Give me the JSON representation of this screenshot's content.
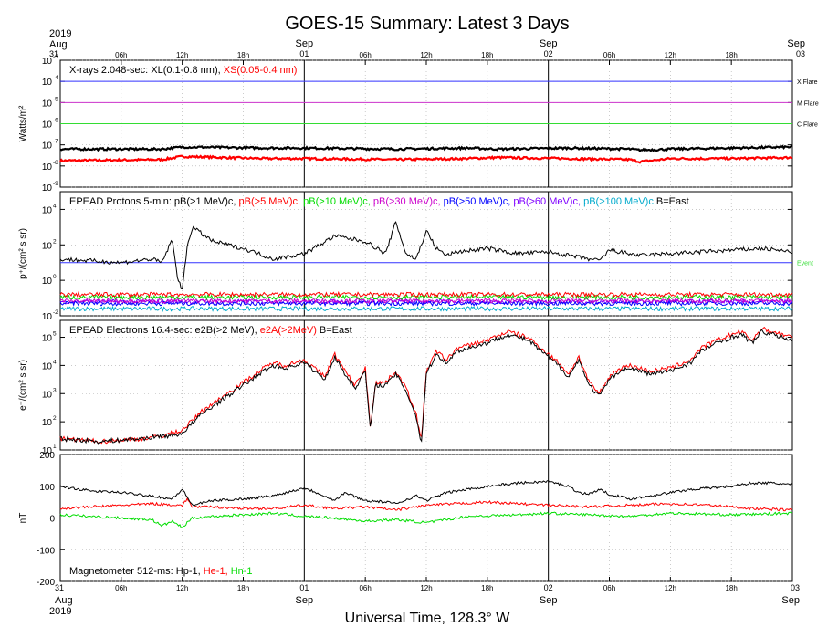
{
  "title": "GOES-15 Summary: Latest 3 Days",
  "xlabel": "Universal Time, 128.3° W",
  "colors": {
    "black": "#000000",
    "red": "#ff0000",
    "green": "#00dd00",
    "purple": "#cc00cc",
    "blue": "#0000ff",
    "violet": "#7f00ff",
    "cyan": "#00aacc",
    "line_blue": "#3333ff",
    "line_magenta": "#cc33cc",
    "line_green": "#33dd33"
  },
  "top_dates": [
    {
      "hour": 0,
      "year": "2019",
      "month": "Aug",
      "day": "31"
    },
    {
      "hour": 24,
      "day": "01",
      "month": "Sep"
    },
    {
      "hour": 48,
      "day": "02",
      "month": "Sep"
    },
    {
      "hour": 72,
      "day": "03",
      "month": "Sep"
    }
  ],
  "bottom_dates": [
    {
      "hour": 0,
      "day": "31",
      "month": "Aug",
      "year": "2019"
    },
    {
      "hour": 24,
      "day": "01",
      "month": "Sep"
    },
    {
      "hour": 48,
      "day": "02",
      "month": "Sep"
    },
    {
      "hour": 72,
      "day": "03",
      "month": "Sep"
    }
  ],
  "hour_ticks": [
    {
      "hour": 6,
      "label": "06h"
    },
    {
      "hour": 12,
      "label": "12h"
    },
    {
      "hour": 18,
      "label": "18h"
    },
    {
      "hour": 30,
      "label": "06h"
    },
    {
      "hour": 36,
      "label": "12h"
    },
    {
      "hour": 42,
      "label": "18h"
    },
    {
      "hour": 54,
      "label": "06h"
    },
    {
      "hour": 60,
      "label": "12h"
    },
    {
      "hour": 66,
      "label": "18h"
    }
  ],
  "chart_data": [
    {
      "type": "line",
      "panel": "xrays",
      "ylabel": "Watts/m²",
      "yscale": "log",
      "ylim_exp": [
        -9,
        -3
      ],
      "yticks": [
        {
          "base": "10",
          "exp": "-3"
        },
        {
          "base": "10",
          "exp": "-4"
        },
        {
          "base": "10",
          "exp": "-5"
        },
        {
          "base": "10",
          "exp": "-6"
        },
        {
          "base": "10",
          "exp": "-7"
        },
        {
          "base": "10",
          "exp": "-8"
        },
        {
          "base": "10",
          "exp": "-9"
        }
      ],
      "legend": [
        {
          "text": "X-rays  2.048-sec: XL(0.1-0.8 nm), ",
          "color": "#000000"
        },
        {
          "text": "XS(0.05-0.4 nm)",
          "color": "#ff0000"
        }
      ],
      "thresholds": [
        {
          "label": "X Flare",
          "exp": -4,
          "color": "#3333ff"
        },
        {
          "label": "M Flare",
          "exp": -5,
          "color": "#cc33cc"
        },
        {
          "label": "C Flare",
          "exp": -6,
          "color": "#33dd33"
        }
      ],
      "series": [
        {
          "name": "XL(0.1-0.8 nm)",
          "color": "#000000",
          "x": [
            0,
            10,
            12,
            20,
            24,
            33,
            40,
            43,
            50,
            56,
            57,
            60,
            66,
            72
          ],
          "y": [
            -7.2,
            -7.2,
            -7.1,
            -7.15,
            -7.15,
            -7.2,
            -7.15,
            -7.2,
            -7.15,
            -7.2,
            -7.25,
            -7.2,
            -7.15,
            -7.1
          ]
        },
        {
          "name": "XS(0.05-0.4 nm)",
          "color": "#ff0000",
          "x": [
            0,
            10,
            12,
            20,
            24,
            33,
            40,
            43,
            50,
            56,
            57,
            60,
            66,
            72
          ],
          "y": [
            -7.75,
            -7.7,
            -7.55,
            -7.65,
            -7.65,
            -7.7,
            -7.65,
            -7.6,
            -7.65,
            -7.7,
            -7.8,
            -7.65,
            -7.65,
            -7.6
          ]
        }
      ]
    },
    {
      "type": "line",
      "panel": "protons",
      "ylabel": "p⁺/(cm² s sr)",
      "yscale": "log",
      "ylim_exp": [
        -2,
        5
      ],
      "yticks": [
        {
          "base": "10",
          "exp": "-2"
        },
        {
          "base": "10",
          "exp": "0"
        },
        {
          "base": "10",
          "exp": "2"
        },
        {
          "base": "10",
          "exp": "4"
        }
      ],
      "legend": [
        {
          "text": "EPEAD Protons 5-min: pB(>1 MeV)c, ",
          "color": "#000000"
        },
        {
          "text": "pB(>5 MeV)c, ",
          "color": "#ff0000"
        },
        {
          "text": "pB(>10 MeV)c, ",
          "color": "#00dd00"
        },
        {
          "text": "pB(>30 MeV)c, ",
          "color": "#cc00cc"
        },
        {
          "text": "pB(>50 MeV)c, ",
          "color": "#0000ff"
        },
        {
          "text": "pB(>60 MeV)c, ",
          "color": "#7f00ff"
        },
        {
          "text": "pB(>100 MeV)c ",
          "color": "#00aacc"
        },
        {
          "text": "B=East",
          "color": "#000000"
        }
      ],
      "thresholds": [
        {
          "label": "Event",
          "exp": 1,
          "color": "#3333ff"
        }
      ],
      "series": [
        {
          "name": "pB(>1 MeV)c",
          "color": "#000000",
          "x": [
            0,
            3,
            6,
            9,
            10,
            11,
            11.5,
            12,
            12.5,
            13,
            15,
            18,
            21,
            24,
            27,
            30,
            32,
            33,
            34,
            35,
            36,
            37,
            38,
            39,
            42,
            45,
            48,
            51,
            53,
            54,
            57,
            60,
            63,
            66,
            69,
            72
          ],
          "y": [
            1.2,
            1.1,
            1.0,
            1.2,
            1.0,
            2.3,
            0.3,
            -0.6,
            2.0,
            3.0,
            2.2,
            1.8,
            1.2,
            1.5,
            2.5,
            2.2,
            1.5,
            3.3,
            1.5,
            1.2,
            2.8,
            1.8,
            1.4,
            1.6,
            1.8,
            1.5,
            1.6,
            1.3,
            1.1,
            1.7,
            1.4,
            1.5,
            1.6,
            1.7,
            1.8,
            1.6
          ]
        },
        {
          "name": "pB(>5 MeV)c",
          "color": "#ff0000",
          "x": [
            0,
            72
          ],
          "y": [
            -0.8,
            -0.8
          ]
        },
        {
          "name": "pB(>10 MeV)c",
          "color": "#00dd00",
          "x": [
            0,
            72
          ],
          "y": [
            -0.95,
            -0.95
          ]
        },
        {
          "name": "pB(>30 MeV)c",
          "color": "#cc00cc",
          "x": [
            0,
            72
          ],
          "y": [
            -1.15,
            -1.15
          ]
        },
        {
          "name": "pB(>50 MeV)c",
          "color": "#0000ff",
          "x": [
            0,
            72
          ],
          "y": [
            -1.3,
            -1.3
          ]
        },
        {
          "name": "pB(>60 MeV)c",
          "color": "#7f00ff",
          "x": [
            0,
            72
          ],
          "y": [
            -1.2,
            -1.2
          ]
        },
        {
          "name": "pB(>100 MeV)c",
          "color": "#00aacc",
          "x": [
            0,
            72
          ],
          "y": [
            -1.6,
            -1.6
          ]
        }
      ]
    },
    {
      "type": "line",
      "panel": "electrons",
      "ylabel": "e⁻/(cm² s sr)",
      "yscale": "log",
      "ylim_exp": [
        1,
        5.6
      ],
      "yticks": [
        {
          "base": "10",
          "exp": "1"
        },
        {
          "base": "10",
          "exp": "2"
        },
        {
          "base": "10",
          "exp": "3"
        },
        {
          "base": "10",
          "exp": "4"
        },
        {
          "base": "10",
          "exp": "5"
        }
      ],
      "legend": [
        {
          "text": "EPEAD Electrons 16.4-sec: e2B(>2 MeV), ",
          "color": "#000000"
        },
        {
          "text": "e2A(>2MeV)",
          "color": "#ff0000"
        },
        {
          "text": "  B=East",
          "color": "#000000"
        }
      ],
      "series": [
        {
          "name": "e2B(>2 MeV)",
          "color": "#000000",
          "x": [
            0,
            4,
            8,
            10,
            11,
            12,
            14,
            16,
            18,
            20,
            21,
            22,
            24,
            25,
            26,
            27,
            28,
            29,
            30,
            30.5,
            31,
            32,
            33,
            34,
            35,
            35.5,
            36,
            37,
            38,
            39,
            40,
            42,
            44,
            46,
            48,
            49,
            50,
            51,
            52,
            53,
            54,
            55,
            56,
            58,
            60,
            62,
            63,
            64,
            66,
            67,
            68,
            69,
            70,
            72
          ],
          "y": [
            1.4,
            1.3,
            1.4,
            1.5,
            1.5,
            1.6,
            2.3,
            2.8,
            3.3,
            3.8,
            4.0,
            3.9,
            4.1,
            3.8,
            3.5,
            4.3,
            3.7,
            3.2,
            3.8,
            1.7,
            3.3,
            3.3,
            3.7,
            3.1,
            2.2,
            1.2,
            3.7,
            4.4,
            4.1,
            4.5,
            4.6,
            4.8,
            5.1,
            4.9,
            4.3,
            4.0,
            3.6,
            4.2,
            3.3,
            2.9,
            3.5,
            3.8,
            3.9,
            3.7,
            3.8,
            4.1,
            4.5,
            4.7,
            5.0,
            5.1,
            4.8,
            5.2,
            5.1,
            4.9
          ]
        },
        {
          "name": "e2A(>2MeV)",
          "color": "#ff0000",
          "x": [
            0,
            4,
            8,
            10,
            11,
            12,
            14,
            16,
            18,
            20,
            21,
            22,
            24,
            25,
            26,
            27,
            28,
            29,
            30,
            30.5,
            31,
            32,
            33,
            34,
            35,
            35.5,
            36,
            37,
            38,
            39,
            40,
            42,
            44,
            46,
            48,
            49,
            50,
            51,
            52,
            53,
            54,
            55,
            56,
            58,
            60,
            62,
            63,
            64,
            66,
            67,
            68,
            69,
            70,
            72
          ],
          "y": [
            1.4,
            1.3,
            1.4,
            1.5,
            1.6,
            1.7,
            2.4,
            2.9,
            3.4,
            3.9,
            4.1,
            4.0,
            4.2,
            3.9,
            3.6,
            4.4,
            3.8,
            3.3,
            3.9,
            1.8,
            3.4,
            3.4,
            3.8,
            3.2,
            2.3,
            1.3,
            3.8,
            4.5,
            4.2,
            4.6,
            4.7,
            4.9,
            5.2,
            5.0,
            4.4,
            4.1,
            3.7,
            4.3,
            3.4,
            3.0,
            3.6,
            3.9,
            4.0,
            3.8,
            3.9,
            4.2,
            4.6,
            4.8,
            5.1,
            5.2,
            4.9,
            5.3,
            5.2,
            5.0
          ]
        }
      ]
    },
    {
      "type": "line",
      "panel": "magnetometer",
      "ylabel": "nT",
      "ylim": [
        -200,
        200
      ],
      "yticks": [
        "200",
        "100",
        "0",
        "-100",
        "-200"
      ],
      "legend": [
        {
          "text": "Magnetometer  512-ms: Hp-1, ",
          "color": "#000000"
        },
        {
          "text": "He-1, ",
          "color": "#ff0000"
        },
        {
          "text": "Hn-1",
          "color": "#00dd00"
        }
      ],
      "thresholds": [
        {
          "label": "",
          "value": 0,
          "color": "#3333ff"
        }
      ],
      "series": [
        {
          "name": "Hp-1",
          "color": "#000000",
          "x": [
            0,
            3,
            6,
            9,
            11,
            12,
            13,
            15,
            18,
            21,
            24,
            26,
            27,
            28,
            30,
            32,
            33,
            35,
            36,
            38,
            42,
            45,
            48,
            50,
            51,
            52,
            53,
            54,
            56,
            58,
            60,
            62,
            64,
            66,
            68,
            70,
            72
          ],
          "y": [
            100,
            85,
            80,
            70,
            60,
            90,
            40,
            55,
            60,
            70,
            95,
            70,
            55,
            80,
            55,
            50,
            45,
            70,
            55,
            80,
            100,
            110,
            115,
            100,
            80,
            75,
            90,
            75,
            60,
            70,
            80,
            90,
            95,
            100,
            110,
            110,
            105
          ]
        },
        {
          "name": "He-1",
          "color": "#ff0000",
          "x": [
            0,
            3,
            6,
            9,
            12,
            12.5,
            13,
            15,
            18,
            21,
            24,
            27,
            30,
            33,
            36,
            39,
            42,
            45,
            48,
            52,
            56,
            60,
            64,
            68,
            72
          ],
          "y": [
            30,
            35,
            40,
            45,
            40,
            60,
            35,
            35,
            30,
            30,
            40,
            30,
            35,
            25,
            40,
            45,
            50,
            45,
            40,
            35,
            40,
            45,
            40,
            30,
            25
          ]
        },
        {
          "name": "Hn-1",
          "color": "#00dd00",
          "x": [
            0,
            3,
            6,
            9,
            10,
            11,
            12,
            13,
            15,
            18,
            21,
            24,
            27,
            30,
            33,
            36,
            40,
            45,
            48,
            52,
            56,
            60,
            66,
            72
          ],
          "y": [
            10,
            5,
            0,
            -5,
            -25,
            -10,
            -30,
            0,
            5,
            10,
            15,
            5,
            0,
            -10,
            -5,
            -15,
            5,
            10,
            15,
            10,
            5,
            15,
            10,
            15
          ]
        }
      ]
    }
  ]
}
